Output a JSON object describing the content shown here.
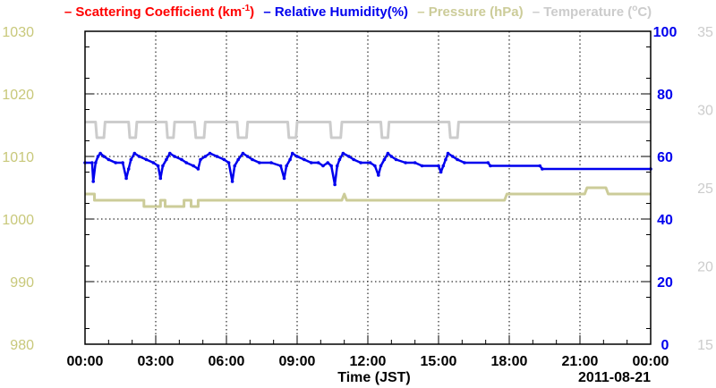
{
  "chart_data": {
    "type": "line",
    "title": "",
    "legend": [
      {
        "dash": "–",
        "label": "Scattering Coefficient (km",
        "sup": "-1",
        "close": ")",
        "color": "#ff0000"
      },
      {
        "dash": "–",
        "label": "Relative Humidity(%)",
        "sup": "",
        "close": "",
        "color": "#0000ee"
      },
      {
        "dash": "–",
        "label": "Pressure (hPa)",
        "sup": "",
        "close": "",
        "color": "#cccc99"
      },
      {
        "dash": "–",
        "label": "Temperature (",
        "sup": "o",
        "close": "C)",
        "color": "#cccccc"
      }
    ],
    "legend_placement": "top",
    "xlabel": "Time (JST)",
    "date_label": "2011-08-21",
    "x_ticks": [
      "00:00",
      "03:00",
      "06:00",
      "09:00",
      "12:00",
      "15:00",
      "18:00",
      "21:00",
      "00:00"
    ],
    "xlim": [
      0,
      24
    ],
    "grid": true,
    "axes": {
      "pressure": {
        "side": "left-outer",
        "color": "#c8c87a",
        "ylim": [
          980,
          1030
        ],
        "ticks": [
          980,
          990,
          1000,
          1010,
          1020,
          1030
        ]
      },
      "humidity": {
        "side": "right-inner",
        "color": "#0000ee",
        "ylim": [
          0,
          100
        ],
        "ticks": [
          0,
          20,
          40,
          60,
          80,
          100
        ]
      },
      "temperature": {
        "side": "right-outer",
        "color": "#cccccc",
        "ylim": [
          15,
          35
        ],
        "ticks": [
          15,
          20,
          25,
          30,
          35
        ]
      }
    },
    "series": [
      {
        "name": "Relative Humidity(%)",
        "axis": "humidity",
        "color": "#0000ee",
        "markers": true,
        "points": [
          [
            0,
            58
          ],
          [
            0.3,
            58
          ],
          [
            0.35,
            52
          ],
          [
            0.45,
            58
          ],
          [
            0.55,
            60
          ],
          [
            0.65,
            61
          ],
          [
            0.8,
            60
          ],
          [
            1.0,
            59
          ],
          [
            1.3,
            58
          ],
          [
            1.6,
            58
          ],
          [
            1.75,
            53
          ],
          [
            1.85,
            56
          ],
          [
            1.95,
            59
          ],
          [
            2.1,
            61
          ],
          [
            2.3,
            60
          ],
          [
            2.6,
            59
          ],
          [
            2.9,
            58
          ],
          [
            3.1,
            57
          ],
          [
            3.2,
            53
          ],
          [
            3.3,
            57
          ],
          [
            3.45,
            59
          ],
          [
            3.6,
            61
          ],
          [
            3.8,
            60
          ],
          [
            4.1,
            59
          ],
          [
            4.3,
            58
          ],
          [
            4.6,
            57
          ],
          [
            4.8,
            56
          ],
          [
            4.9,
            59
          ],
          [
            5.1,
            60
          ],
          [
            5.3,
            61
          ],
          [
            5.6,
            60
          ],
          [
            5.9,
            59
          ],
          [
            6.1,
            58
          ],
          [
            6.25,
            52
          ],
          [
            6.35,
            57
          ],
          [
            6.5,
            59
          ],
          [
            6.7,
            61
          ],
          [
            6.9,
            60
          ],
          [
            7.1,
            59
          ],
          [
            7.4,
            58
          ],
          [
            7.9,
            58
          ],
          [
            8.3,
            57
          ],
          [
            8.45,
            53
          ],
          [
            8.55,
            57
          ],
          [
            8.7,
            59
          ],
          [
            8.8,
            61
          ],
          [
            9.0,
            60
          ],
          [
            9.3,
            59
          ],
          [
            9.6,
            58
          ],
          [
            9.9,
            58
          ],
          [
            10.1,
            57
          ],
          [
            10.3,
            58
          ],
          [
            10.45,
            57
          ],
          [
            10.6,
            51
          ],
          [
            10.7,
            57
          ],
          [
            10.8,
            59
          ],
          [
            10.95,
            61
          ],
          [
            11.2,
            60
          ],
          [
            11.4,
            59
          ],
          [
            11.7,
            58
          ],
          [
            12.1,
            58
          ],
          [
            12.3,
            57
          ],
          [
            12.45,
            54
          ],
          [
            12.55,
            57
          ],
          [
            12.7,
            59
          ],
          [
            12.85,
            61
          ],
          [
            13.0,
            60
          ],
          [
            13.2,
            59
          ],
          [
            13.6,
            58
          ],
          [
            14.0,
            58
          ],
          [
            14.3,
            57
          ],
          [
            15.0,
            57
          ],
          [
            15.1,
            55
          ],
          [
            15.2,
            57
          ],
          [
            15.3,
            59
          ],
          [
            15.4,
            61
          ],
          [
            15.6,
            60
          ],
          [
            15.8,
            59
          ],
          [
            16.1,
            58
          ],
          [
            17.1,
            58
          ],
          [
            17.2,
            57
          ],
          [
            19.3,
            57
          ],
          [
            19.4,
            56
          ],
          [
            24,
            56
          ]
        ]
      },
      {
        "name": "Pressure (hPa)",
        "axis": "pressure",
        "color": "#cccc99",
        "markers": false,
        "points": [
          [
            0,
            1004
          ],
          [
            0.4,
            1004
          ],
          [
            0.4,
            1003
          ],
          [
            2.5,
            1003
          ],
          [
            2.5,
            1002
          ],
          [
            3.2,
            1002
          ],
          [
            3.2,
            1003
          ],
          [
            3.4,
            1003
          ],
          [
            3.4,
            1002
          ],
          [
            4.2,
            1002
          ],
          [
            4.2,
            1003
          ],
          [
            4.5,
            1003
          ],
          [
            4.5,
            1002
          ],
          [
            4.8,
            1002
          ],
          [
            4.8,
            1003
          ],
          [
            10.9,
            1003
          ],
          [
            11.0,
            1004
          ],
          [
            11.1,
            1003
          ],
          [
            17.8,
            1003
          ],
          [
            17.9,
            1004
          ],
          [
            21.2,
            1004
          ],
          [
            21.3,
            1005
          ],
          [
            22.1,
            1005
          ],
          [
            22.2,
            1004
          ],
          [
            24,
            1004
          ]
        ]
      },
      {
        "name": "Temperature (oC)",
        "axis": "temperature",
        "color": "#cccccc",
        "markers": false,
        "points": [
          [
            0,
            29.2
          ],
          [
            0.45,
            29.2
          ],
          [
            0.5,
            28.2
          ],
          [
            0.8,
            28.2
          ],
          [
            0.85,
            29.2
          ],
          [
            1.85,
            29.2
          ],
          [
            1.9,
            28.2
          ],
          [
            2.15,
            28.2
          ],
          [
            2.2,
            29.2
          ],
          [
            3.45,
            29.2
          ],
          [
            3.5,
            28.2
          ],
          [
            3.75,
            28.2
          ],
          [
            3.8,
            29.2
          ],
          [
            4.65,
            29.2
          ],
          [
            4.7,
            28.2
          ],
          [
            5.05,
            28.2
          ],
          [
            5.1,
            29.2
          ],
          [
            6.45,
            29.2
          ],
          [
            6.5,
            28.2
          ],
          [
            6.85,
            28.2
          ],
          [
            6.9,
            29.2
          ],
          [
            8.6,
            29.2
          ],
          [
            8.65,
            28.2
          ],
          [
            8.95,
            28.2
          ],
          [
            9.0,
            29.2
          ],
          [
            10.4,
            29.2
          ],
          [
            10.45,
            28.2
          ],
          [
            10.85,
            28.2
          ],
          [
            10.9,
            29.2
          ],
          [
            12.55,
            29.2
          ],
          [
            12.6,
            28.2
          ],
          [
            12.85,
            28.2
          ],
          [
            12.9,
            29.2
          ],
          [
            15.45,
            29.2
          ],
          [
            15.5,
            28.2
          ],
          [
            15.8,
            28.2
          ],
          [
            15.85,
            29.2
          ],
          [
            24,
            29.2
          ]
        ]
      }
    ]
  }
}
